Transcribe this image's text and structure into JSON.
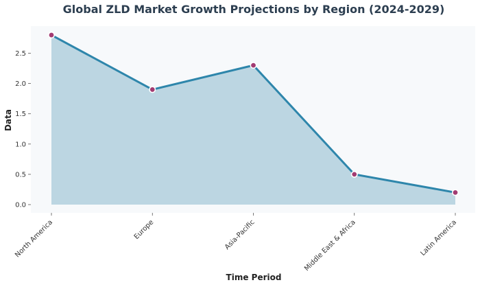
{
  "chart_data": {
    "type": "area",
    "title": "Global ZLD Market Growth Projections by Region (2024-2029)",
    "xlabel": "Time Period",
    "ylabel": "Data",
    "categories": [
      "North America",
      "Europe",
      "Asia-Pacific",
      "Middle East & Africa",
      "Latin America"
    ],
    "values": [
      2.8,
      1.9,
      2.3,
      0.5,
      0.2
    ],
    "yticks": [
      0.0,
      0.5,
      1.0,
      1.5,
      2.0,
      2.5
    ],
    "ytick_labels": [
      "0.0",
      "0.5",
      "1.0",
      "1.5",
      "2.0",
      "2.5"
    ],
    "ylim": [
      -0.15,
      2.95
    ],
    "grid": false,
    "colors": {
      "line": "#2e86ab",
      "fill": "#bcd6e2",
      "marker": "#a23b72",
      "marker_edge": "#ffffff",
      "plot_background": "#f7f9fb",
      "title": "#2c3e50"
    }
  }
}
